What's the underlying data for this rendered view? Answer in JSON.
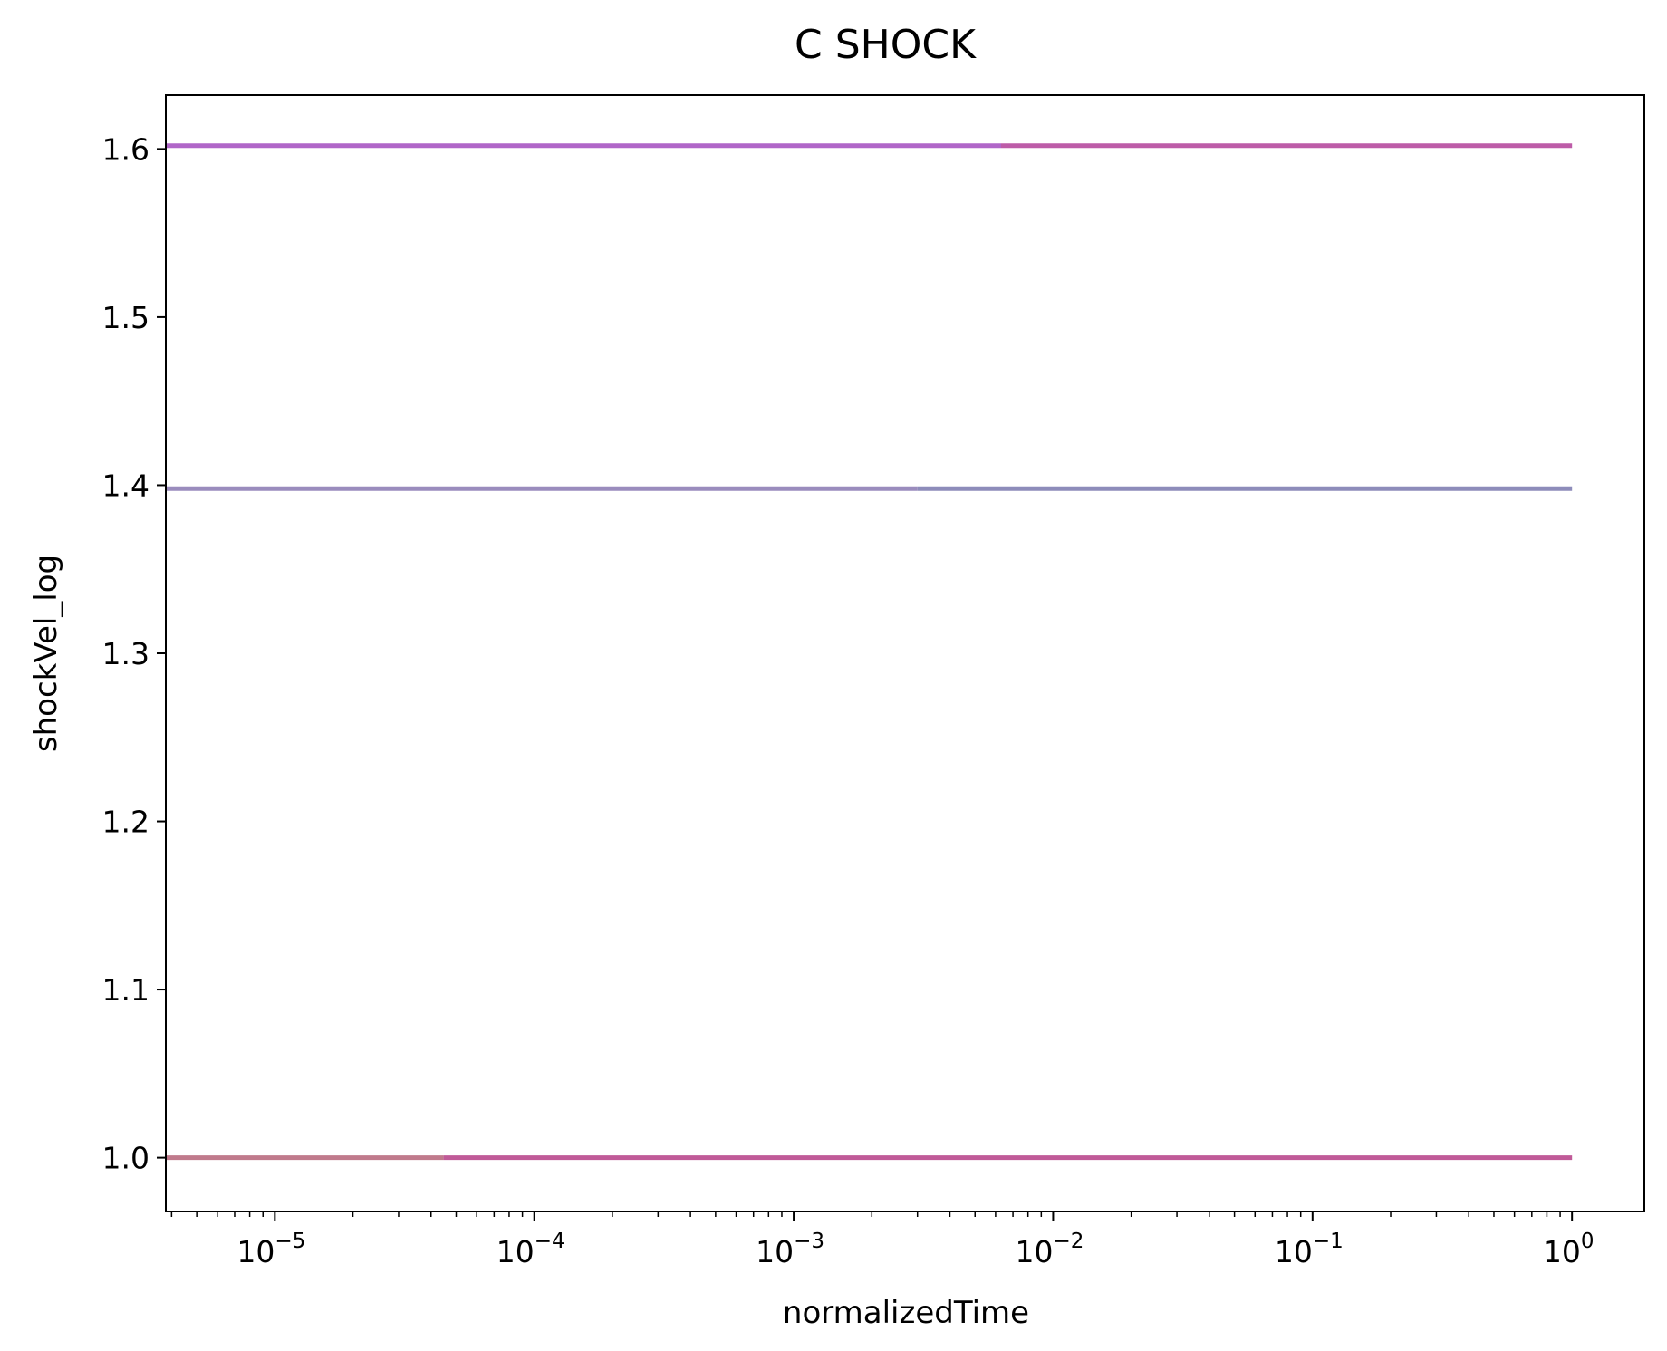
{
  "chart_data": {
    "type": "line",
    "title": "C SHOCK",
    "xlabel": "normalizedTime",
    "ylabel": "shockVel_log",
    "x_scale": "log",
    "xlim": [
      3.8e-06,
      1.9
    ],
    "ylim": [
      0.968,
      1.632
    ],
    "grid": false,
    "x_ticks": [
      {
        "base": "10",
        "exp": "−5",
        "value": 1e-05
      },
      {
        "base": "10",
        "exp": "−4",
        "value": 0.0001
      },
      {
        "base": "10",
        "exp": "−3",
        "value": 0.001
      },
      {
        "base": "10",
        "exp": "−2",
        "value": 0.01
      },
      {
        "base": "10",
        "exp": "−1",
        "value": 0.1
      },
      {
        "base": "10",
        "exp": "0",
        "value": 1
      }
    ],
    "y_ticks": [
      {
        "label": "1.0",
        "value": 1.0
      },
      {
        "label": "1.1",
        "value": 1.1
      },
      {
        "label": "1.2",
        "value": 1.2
      },
      {
        "label": "1.3",
        "value": 1.3
      },
      {
        "label": "1.4",
        "value": 1.4
      },
      {
        "label": "1.5",
        "value": 1.5
      },
      {
        "label": "1.6",
        "value": 1.6
      }
    ],
    "series": [
      {
        "x": [
          3.8e-06,
          4.47e-05
        ],
        "y": [
          1.0,
          1.0
        ],
        "color": "#c07a8c"
      },
      {
        "x": [
          4.47e-05,
          1.0
        ],
        "y": [
          1.0,
          1.0
        ],
        "color": "#c05a98"
      },
      {
        "x": [
          3.8e-06,
          0.003
        ],
        "y": [
          1.398,
          1.398
        ],
        "color": "#9a8cbd"
      },
      {
        "x": [
          0.003,
          1.0
        ],
        "y": [
          1.398,
          1.398
        ],
        "color": "#8d8cba"
      },
      {
        "x": [
          3.8e-06,
          0.0063
        ],
        "y": [
          1.602,
          1.602
        ],
        "color": "#b066c8"
      },
      {
        "x": [
          0.0063,
          1.0
        ],
        "y": [
          1.602,
          1.602
        ],
        "color": "#bd5ca8"
      }
    ]
  }
}
